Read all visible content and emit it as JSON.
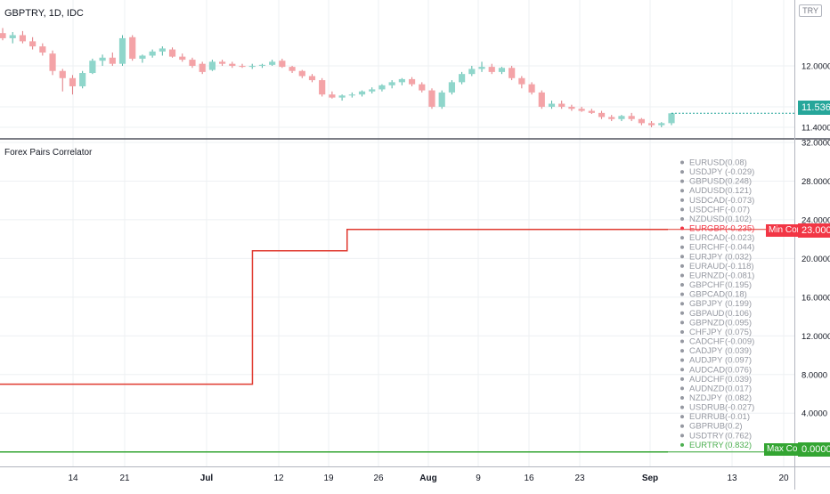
{
  "symbol_title": "GBPTRY, 1D, IDC",
  "currency_button": "TRY",
  "indicator_title": "Forex Pairs Correlator",
  "last_price": "11.5363",
  "min_corr_label": "Min Corr",
  "min_corr_value": "23.0000",
  "max_corr_label": "Max Corr",
  "max_corr_value": "0.0000",
  "colors": {
    "up": "#8fd6cb",
    "down": "#f4a3a7",
    "grid": "#eef0f3",
    "red_line": "#e0392f",
    "green_line": "#33a532",
    "price_badge": "#26a69a",
    "highlight_red": "#f23645",
    "highlight_green": "#4caf50",
    "text_grey": "#9598a1"
  },
  "x_axis": {
    "labels": [
      "14",
      "21",
      "Jul",
      "12",
      "19",
      "26",
      "Aug",
      "9",
      "16",
      "23",
      "Sep",
      "13",
      "20"
    ]
  },
  "chart_data": [
    {
      "type": "candlestick",
      "title": "GBPTRY, 1D, IDC",
      "y_ticks": [
        "12.0000",
        "11.6000",
        "11.4000"
      ],
      "ylim": [
        11.33,
        12.6
      ],
      "ohlc": [
        [
          12.32,
          12.37,
          12.25,
          12.27
        ],
        [
          12.27,
          12.33,
          12.22,
          12.3
        ],
        [
          12.3,
          12.34,
          12.22,
          12.24
        ],
        [
          12.24,
          12.28,
          12.16,
          12.19
        ],
        [
          12.19,
          12.22,
          12.1,
          12.13
        ],
        [
          12.12,
          12.15,
          11.91,
          11.95
        ],
        [
          11.95,
          11.97,
          11.75,
          11.88
        ],
        [
          11.88,
          11.91,
          11.72,
          11.8
        ],
        [
          11.8,
          11.95,
          11.78,
          11.93
        ],
        [
          11.93,
          12.07,
          11.92,
          12.05
        ],
        [
          12.05,
          12.11,
          12.0,
          12.08
        ],
        [
          12.08,
          12.13,
          12.0,
          12.02
        ],
        [
          12.02,
          12.3,
          12.0,
          12.27
        ],
        [
          12.28,
          12.3,
          12.05,
          12.07
        ],
        [
          12.07,
          12.11,
          12.03,
          12.1
        ],
        [
          12.1,
          12.16,
          12.08,
          12.14
        ],
        [
          12.14,
          12.19,
          12.1,
          12.17
        ],
        [
          12.16,
          12.18,
          12.08,
          12.09
        ],
        [
          12.09,
          12.12,
          12.04,
          12.06
        ],
        [
          12.06,
          12.08,
          11.98,
          12.0
        ],
        [
          12.02,
          12.04,
          11.92,
          11.94
        ],
        [
          11.96,
          12.06,
          11.95,
          12.04
        ],
        [
          12.04,
          12.06,
          12.0,
          12.02
        ],
        [
          12.02,
          12.04,
          11.98,
          12.0
        ],
        [
          12.0,
          12.02,
          11.98,
          11.99
        ],
        [
          11.99,
          12.02,
          11.97,
          12.0
        ],
        [
          12.0,
          12.02,
          11.98,
          12.01
        ],
        [
          12.01,
          12.06,
          12.0,
          12.04
        ],
        [
          12.05,
          12.07,
          11.98,
          11.99
        ],
        [
          11.99,
          12.0,
          11.93,
          11.95
        ],
        [
          11.95,
          11.96,
          11.88,
          11.9
        ],
        [
          11.9,
          11.92,
          11.84,
          11.86
        ],
        [
          11.86,
          11.88,
          11.7,
          11.72
        ],
        [
          11.72,
          11.75,
          11.68,
          11.69
        ],
        [
          11.69,
          11.72,
          11.66,
          11.71
        ],
        [
          11.71,
          11.74,
          11.69,
          11.72
        ],
        [
          11.72,
          11.76,
          11.7,
          11.75
        ],
        [
          11.75,
          11.79,
          11.73,
          11.77
        ],
        [
          11.77,
          11.82,
          11.75,
          11.81
        ],
        [
          11.81,
          11.86,
          11.78,
          11.84
        ],
        [
          11.84,
          11.88,
          11.81,
          11.87
        ],
        [
          11.87,
          11.89,
          11.8,
          11.82
        ],
        [
          11.82,
          11.84,
          11.74,
          11.76
        ],
        [
          11.76,
          11.78,
          11.58,
          11.6
        ],
        [
          11.6,
          11.76,
          11.58,
          11.74
        ],
        [
          11.74,
          11.86,
          11.72,
          11.84
        ],
        [
          11.84,
          11.94,
          11.82,
          11.92
        ],
        [
          11.92,
          12.0,
          11.9,
          11.97
        ],
        [
          11.97,
          12.04,
          11.94,
          11.99
        ],
        [
          11.99,
          12.02,
          11.92,
          11.94
        ],
        [
          11.94,
          11.99,
          11.92,
          11.98
        ],
        [
          11.98,
          12.0,
          11.86,
          11.88
        ],
        [
          11.88,
          11.9,
          11.78,
          11.82
        ],
        [
          11.82,
          11.84,
          11.72,
          11.74
        ],
        [
          11.74,
          11.76,
          11.58,
          11.6
        ],
        [
          11.6,
          11.66,
          11.58,
          11.63
        ],
        [
          11.63,
          11.66,
          11.58,
          11.6
        ],
        [
          11.6,
          11.62,
          11.56,
          11.58
        ],
        [
          11.58,
          11.6,
          11.55,
          11.56
        ],
        [
          11.56,
          11.58,
          11.53,
          11.54
        ],
        [
          11.54,
          11.56,
          11.48,
          11.5
        ],
        [
          11.5,
          11.52,
          11.46,
          11.48
        ],
        [
          11.48,
          11.52,
          11.46,
          11.51
        ],
        [
          11.51,
          11.54,
          11.46,
          11.48
        ],
        [
          11.48,
          11.49,
          11.42,
          11.44
        ],
        [
          11.44,
          11.46,
          11.4,
          11.42
        ],
        [
          11.42,
          11.45,
          11.4,
          11.44
        ],
        [
          11.44,
          11.54,
          11.42,
          11.5363
        ]
      ]
    },
    {
      "type": "line",
      "title": "Forex Pairs Correlator",
      "y_ticks": [
        "32.0000",
        "28.0000",
        "24.0000",
        "20.0000",
        "16.0000",
        "12.0000",
        "8.0000",
        "4.0000",
        "0.0000"
      ],
      "ylim": [
        -1.5,
        32
      ],
      "series": [
        {
          "name": "Min Corr",
          "color": "#e0392f",
          "values": [
            7,
            7,
            7,
            7,
            7,
            7,
            7,
            7,
            7,
            7,
            7,
            7,
            7,
            7,
            7,
            7,
            7,
            7,
            7,
            7,
            7,
            7,
            7,
            7,
            7,
            7,
            7,
            7,
            7,
            7,
            7,
            7,
            7,
            7,
            7,
            7,
            7,
            7,
            7,
            7,
            7,
            7,
            7,
            7,
            7,
            7,
            7,
            7,
            20.8,
            20.8,
            20.8,
            20.8,
            20.8,
            20.8,
            20.8,
            20.8,
            20.8,
            20.8,
            20.8,
            20.8,
            20.8,
            20.8,
            20.8,
            20.8,
            20.8,
            20.8,
            23,
            23,
            23,
            23,
            23,
            23,
            23,
            23,
            23,
            23,
            23,
            23,
            23,
            23,
            23,
            23,
            23,
            23,
            23,
            23,
            23,
            23,
            23,
            23,
            23,
            23,
            23,
            23,
            23,
            23,
            23,
            23,
            23,
            23,
            23,
            23,
            23,
            23,
            23,
            23,
            23,
            23,
            23,
            23,
            23,
            23,
            23,
            23,
            23,
            23,
            23,
            23,
            23,
            23,
            23,
            23,
            23,
            23,
            23,
            23,
            23,
            23
          ]
        },
        {
          "name": "Max Corr",
          "color": "#33a532",
          "values": [
            0,
            0,
            0,
            0,
            0,
            0,
            0,
            0,
            0,
            0,
            0,
            0,
            0,
            0,
            0,
            0,
            0,
            0,
            0,
            0,
            0,
            0,
            0,
            0,
            0,
            0,
            0,
            0,
            0,
            0,
            0,
            0,
            0,
            0,
            0,
            0,
            0,
            0,
            0,
            0,
            0,
            0,
            0,
            0,
            0,
            0,
            0,
            0,
            0,
            0,
            0,
            0,
            0,
            0,
            0,
            0,
            0,
            0,
            0,
            0,
            0,
            0,
            0,
            0,
            0,
            0,
            0,
            0,
            0,
            0,
            0,
            0,
            0,
            0,
            0,
            0,
            0,
            0,
            0,
            0,
            0,
            0,
            0,
            0,
            0,
            0,
            0,
            0,
            0,
            0,
            0,
            0,
            0,
            0,
            0,
            0,
            0,
            0,
            0,
            0,
            0,
            0,
            0,
            0,
            0,
            0,
            0,
            0,
            0,
            0,
            0,
            0,
            0,
            0,
            0,
            0,
            0,
            0,
            0,
            0,
            0,
            0,
            0,
            0,
            0,
            0,
            0
          ]
        }
      ],
      "legend_items": [
        {
          "pair": "EURUSD",
          "value": "(0.08)"
        },
        {
          "pair": "USDJPY",
          "value": "(-0.029)"
        },
        {
          "pair": "GBPUSD",
          "value": "(0.248)"
        },
        {
          "pair": "AUDUSD",
          "value": "(0.121)"
        },
        {
          "pair": "USDCAD",
          "value": "(-0.073)"
        },
        {
          "pair": "USDCHF",
          "value": "(-0.07)"
        },
        {
          "pair": "NZDUSD",
          "value": "(0.102)"
        },
        {
          "pair": "EURGBP",
          "value": "(-0.235)",
          "highlight": "min"
        },
        {
          "pair": "EURCAD",
          "value": "(-0.023)"
        },
        {
          "pair": "EURCHF",
          "value": "(-0.044)"
        },
        {
          "pair": "EURJPY",
          "value": "(0.032)"
        },
        {
          "pair": "EURAUD",
          "value": "(-0.118)"
        },
        {
          "pair": "EURNZD",
          "value": "(-0.081)"
        },
        {
          "pair": "GBPCHF",
          "value": "(0.195)"
        },
        {
          "pair": "GBPCAD",
          "value": "(0.18)"
        },
        {
          "pair": "GBPJPY",
          "value": "(0.199)"
        },
        {
          "pair": "GBPAUD",
          "value": "(0.106)"
        },
        {
          "pair": "GBPNZD",
          "value": "(0.095)"
        },
        {
          "pair": "CHFJPY",
          "value": "(0.075)"
        },
        {
          "pair": "CADCHF",
          "value": "(-0.009)"
        },
        {
          "pair": "CADJPY",
          "value": "(0.039)"
        },
        {
          "pair": "AUDJPY",
          "value": "(0.097)"
        },
        {
          "pair": "AUDCAD",
          "value": "(0.076)"
        },
        {
          "pair": "AUDCHF",
          "value": "(0.039)"
        },
        {
          "pair": "AUDNZD",
          "value": "(0.017)"
        },
        {
          "pair": "NZDJPY",
          "value": "(0.082)"
        },
        {
          "pair": "USDRUB",
          "value": "(-0.027)"
        },
        {
          "pair": "EURRUB",
          "value": "(-0.01)"
        },
        {
          "pair": "GBPRUB",
          "value": "(0.2)"
        },
        {
          "pair": "USDTRY",
          "value": "(0.762)"
        },
        {
          "pair": "EURTRY",
          "value": "(0.832)",
          "highlight": "max"
        }
      ]
    }
  ]
}
